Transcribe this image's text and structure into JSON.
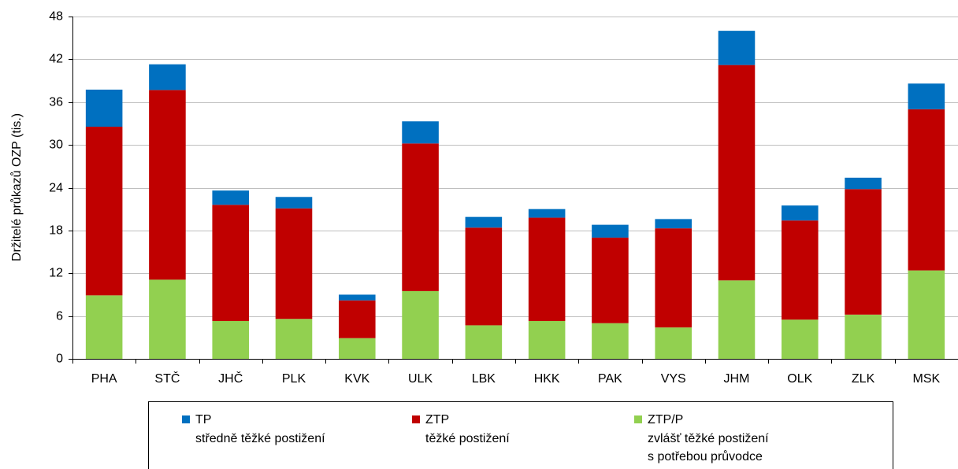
{
  "chart_data": {
    "type": "stacked_bar",
    "ylabel": "Držitelé průkazů OZP (tis.)",
    "categories": [
      "PHA",
      "STČ",
      "JHČ",
      "PLK",
      "KVK",
      "ULK",
      "LBK",
      "HKK",
      "PAK",
      "VYS",
      "JHM",
      "OLK",
      "ZLK",
      "MSK"
    ],
    "series": [
      {
        "name": "TP",
        "description": [
          "středně těžké postižení"
        ],
        "color": "#0070c0",
        "values": [
          5.2,
          3.6,
          2.0,
          1.6,
          0.8,
          3.1,
          1.5,
          1.2,
          1.8,
          1.3,
          4.8,
          2.1,
          1.6,
          3.6
        ]
      },
      {
        "name": "ZTP",
        "description": [
          "těžké postižení"
        ],
        "color": "#c00000",
        "values": [
          23.65,
          26.6,
          16.3,
          15.5,
          5.3,
          20.7,
          13.7,
          14.5,
          12.0,
          13.9,
          30.2,
          13.9,
          17.6,
          22.6
        ]
      },
      {
        "name": "ZTP/P",
        "description": [
          "zvlášť těžké postižení",
          "s potřebou průvodce"
        ],
        "color": "#92d050",
        "values": [
          8.9,
          11.1,
          5.3,
          5.6,
          2.9,
          9.5,
          4.7,
          5.3,
          5.0,
          4.4,
          11.0,
          5.5,
          6.2,
          12.4
        ]
      }
    ],
    "ylim": [
      0,
      48
    ],
    "yticks": [
      0,
      6,
      12,
      18,
      24,
      30,
      36,
      42,
      48
    ],
    "grid": true
  }
}
